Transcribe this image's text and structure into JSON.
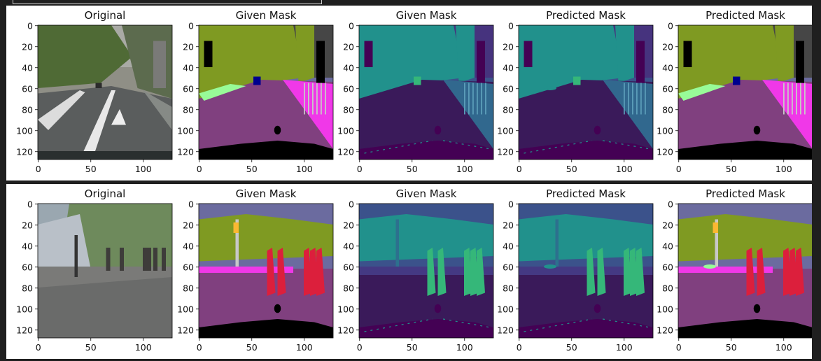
{
  "rows": [
    {
      "panels": [
        {
          "title": "Original",
          "kind": "photo1"
        },
        {
          "title": "Given Mask",
          "kind": "mask_color1"
        },
        {
          "title": "Given Mask",
          "kind": "mask_viridis1"
        },
        {
          "title": "Predicted Mask",
          "kind": "pred_viridis1"
        },
        {
          "title": "Predicted Mask",
          "kind": "pred_color1"
        }
      ]
    },
    {
      "panels": [
        {
          "title": "Original",
          "kind": "photo2"
        },
        {
          "title": "Given Mask",
          "kind": "mask_color2"
        },
        {
          "title": "Given Mask",
          "kind": "mask_viridis2"
        },
        {
          "title": "Predicted Mask",
          "kind": "pred_viridis2"
        },
        {
          "title": "Predicted Mask",
          "kind": "pred_color2"
        }
      ]
    }
  ],
  "chart_data": {
    "type": "image-grid",
    "x_ticks": [
      "0",
      "50",
      "100"
    ],
    "y_ticks": [
      "0",
      "20",
      "40",
      "60",
      "80",
      "100",
      "120"
    ],
    "x_tick_values": [
      0,
      50,
      100
    ],
    "y_tick_values": [
      0,
      20,
      40,
      60,
      80,
      100,
      120
    ],
    "xlim": [
      0,
      128
    ],
    "ylim": [
      128,
      0
    ],
    "grid": false
  },
  "colors": {
    "figure_bg": "#ffffff",
    "page_bg": "#1f1f1f",
    "sky_color": "#6b6b9f",
    "veg_color": "#7f9a22",
    "road_color": "#80407f",
    "sidewalk_color": "#f038e8",
    "car_black": "#000000",
    "person_red": "#dc1f3c",
    "viridis_dark": "#3a1a5a",
    "viridis_teal": "#21918c",
    "viridis_green": "#35b779"
  }
}
